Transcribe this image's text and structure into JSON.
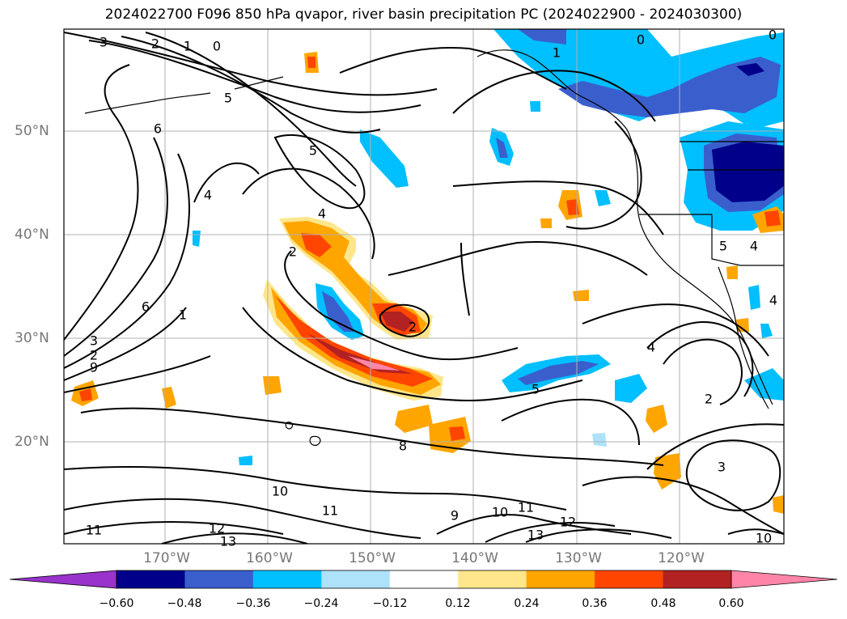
{
  "title": "2024022700 F096 850 hPa qvapor, river basin precipitation PC (2024022900 - 2024030300)",
  "axes": {
    "lat_ticks": [
      "50°N",
      "40°N",
      "30°N",
      "20°N"
    ],
    "lon_ticks": [
      "170°W",
      "160°W",
      "150°W",
      "140°W",
      "130°W",
      "120°W"
    ]
  },
  "colorbar": {
    "ticks": [
      "−0.60",
      "−0.48",
      "−0.36",
      "−0.24",
      "−0.12",
      "0.12",
      "0.24",
      "0.36",
      "0.48",
      "0.60"
    ],
    "colors": [
      "#9933cc",
      "#00008b",
      "#3a5fcd",
      "#00bfff",
      "#aee2fa",
      "#ffffff",
      "#ffe68a",
      "#ffa500",
      "#ff4500",
      "#b22222",
      "#ff85a8"
    ]
  },
  "contour_labels": [
    "3",
    "2",
    "1",
    "0",
    "1",
    "0",
    "0",
    "5",
    "6",
    "5",
    "4",
    "4",
    "2",
    "2",
    "1",
    "6",
    "3",
    "2",
    "9",
    "5",
    "8",
    "10",
    "11",
    "9",
    "10",
    "11",
    "12",
    "11",
    "12",
    "13",
    "13",
    "4",
    "2",
    "3",
    "10",
    "5",
    "4",
    "4"
  ]
}
